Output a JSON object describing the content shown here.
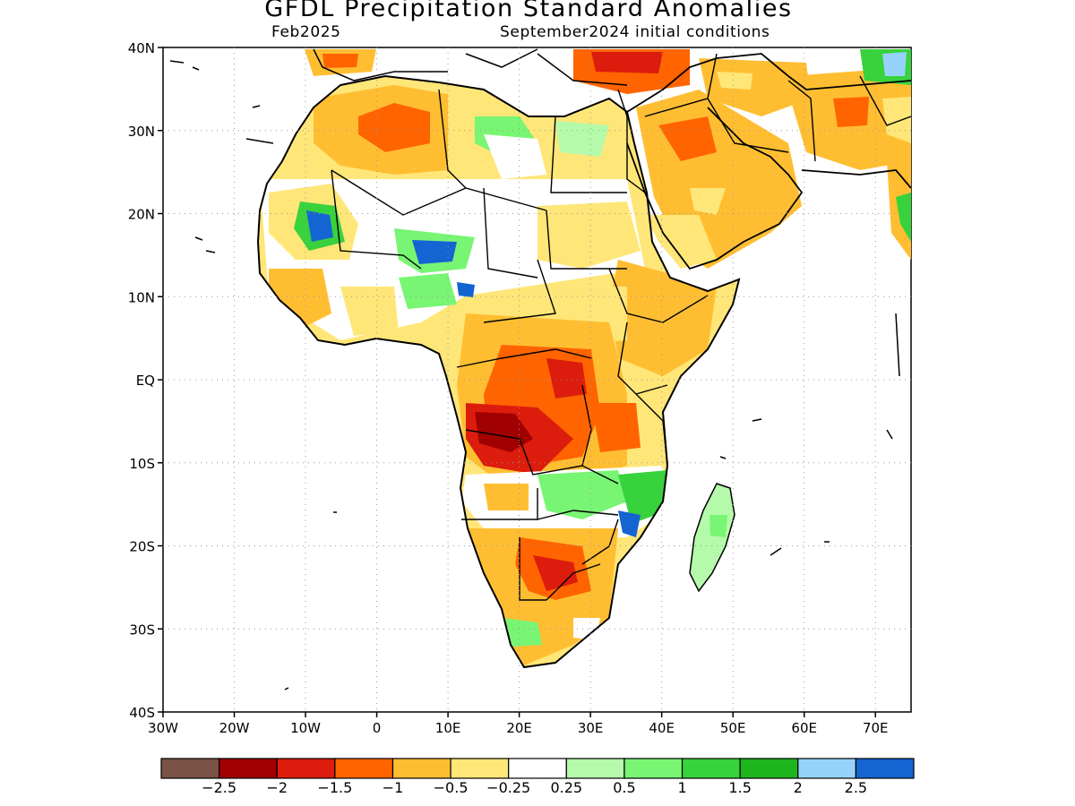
{
  "title": "GFDL Precipitation Standard Anomalies",
  "valid_month": "Feb2025",
  "initial_conditions": "September2024 initial conditions",
  "map": {
    "lon_range": [
      -30,
      75
    ],
    "lat_range": [
      -40,
      40
    ],
    "lat_ticks": [
      {
        "value": 40,
        "label": "40N"
      },
      {
        "value": 30,
        "label": "30N"
      },
      {
        "value": 20,
        "label": "20N"
      },
      {
        "value": 10,
        "label": "10N"
      },
      {
        "value": 0,
        "label": "EQ"
      },
      {
        "value": -10,
        "label": "10S"
      },
      {
        "value": -20,
        "label": "20S"
      },
      {
        "value": -30,
        "label": "30S"
      },
      {
        "value": -40,
        "label": "40S"
      }
    ],
    "lon_ticks": [
      {
        "value": -30,
        "label": "30W"
      },
      {
        "value": -20,
        "label": "20W"
      },
      {
        "value": -10,
        "label": "10W"
      },
      {
        "value": 0,
        "label": "0"
      },
      {
        "value": 10,
        "label": "10E"
      },
      {
        "value": 20,
        "label": "20E"
      },
      {
        "value": 30,
        "label": "30E"
      },
      {
        "value": 40,
        "label": "40E"
      },
      {
        "value": 50,
        "label": "50E"
      },
      {
        "value": 60,
        "label": "60E"
      },
      {
        "value": 70,
        "label": "70E"
      }
    ],
    "grid": "dotted"
  },
  "colorbar": {
    "colors": [
      "#7a5246",
      "#a00000",
      "#dc1c0c",
      "#ff6400",
      "#ffbe32",
      "#ffe678",
      "#ffffff",
      "#b4faaa",
      "#78f573",
      "#37d23c",
      "#1eb41e",
      "#96d2fa",
      "#1464d2"
    ],
    "labels": [
      "−2.5",
      "−2",
      "−1.5",
      "−1",
      "−0.5",
      "−0.25",
      "0.25",
      "0.5",
      "1",
      "1.5",
      "2",
      "2.5"
    ]
  },
  "anomaly_regions": [
    {
      "region": "north-africa-sahara",
      "category": "-0.5"
    },
    {
      "region": "algeria-libya",
      "category": "-1"
    },
    {
      "region": "mauritania-mali",
      "category": "1.5"
    },
    {
      "region": "niger-chad",
      "category": "2.5"
    },
    {
      "region": "sahel",
      "category": "-0.25"
    },
    {
      "region": "ethiopia",
      "category": "-0.5"
    },
    {
      "region": "arabia",
      "category": "-0.5"
    },
    {
      "region": "iran",
      "category": "-1"
    },
    {
      "region": "turkey",
      "category": "-1.5"
    },
    {
      "region": "central-africa-drc",
      "category": "-1"
    },
    {
      "region": "angola-drc",
      "category": "-2"
    },
    {
      "region": "zambia-malawi",
      "category": "1"
    },
    {
      "region": "mozambique",
      "category": "2.5"
    },
    {
      "region": "botswana-south-africa",
      "category": "-1"
    },
    {
      "region": "madagascar",
      "category": "0.5"
    }
  ]
}
